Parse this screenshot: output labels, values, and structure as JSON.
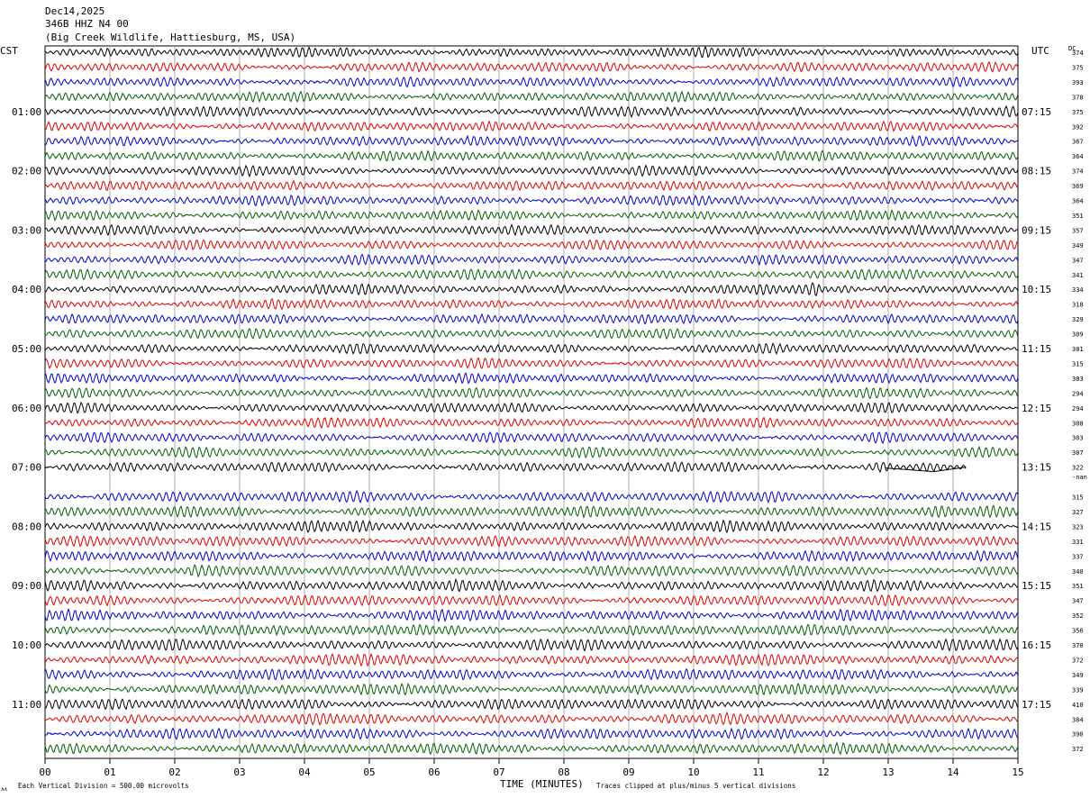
{
  "header": {
    "date": "Dec14,2025",
    "station": "346B HHZ N4 00",
    "location": "(Big Creek Wildlife, Hattiesburg, MS, USA)"
  },
  "labels": {
    "left_tz": "CST",
    "right_tz": "UTC",
    "dc_header": "DC",
    "xaxis": "TIME (MINUTES)",
    "scale_note": "Each Vertical Division =  500.00 microvolts",
    "clip_note": "Traces clipped at plus/minus 5 vertical divisions",
    "corner_mark": "∧∧",
    "gap_note": "-nan"
  },
  "colors": [
    "#000000",
    "#e00000",
    "#0000d0",
    "#006000"
  ],
  "chart_data": {
    "type": "line",
    "title": "",
    "xlabel": "TIME (MINUTES)",
    "x_ticks": [
      "00",
      "01",
      "02",
      "03",
      "04",
      "05",
      "06",
      "07",
      "08",
      "09",
      "10",
      "11",
      "12",
      "13",
      "14",
      "15"
    ],
    "xlim": [
      0,
      15
    ],
    "rows": 48,
    "missing_row": 29,
    "partial_row": {
      "row": 28,
      "end_minute": 14.2
    },
    "left_hour_labels": [
      {
        "row": 4,
        "text": "01:00"
      },
      {
        "row": 8,
        "text": "02:00"
      },
      {
        "row": 12,
        "text": "03:00"
      },
      {
        "row": 16,
        "text": "04:00"
      },
      {
        "row": 20,
        "text": "05:00"
      },
      {
        "row": 24,
        "text": "06:00"
      },
      {
        "row": 28,
        "text": "07:00"
      },
      {
        "row": 32,
        "text": "08:00"
      },
      {
        "row": 36,
        "text": "09:00"
      },
      {
        "row": 40,
        "text": "10:00"
      },
      {
        "row": 44,
        "text": "11:00"
      }
    ],
    "right_hour_labels": [
      {
        "row": 4,
        "text": "07:15"
      },
      {
        "row": 8,
        "text": "08:15"
      },
      {
        "row": 12,
        "text": "09:15"
      },
      {
        "row": 16,
        "text": "10:15"
      },
      {
        "row": 20,
        "text": "11:15"
      },
      {
        "row": 24,
        "text": "12:15"
      },
      {
        "row": 28,
        "text": "13:15"
      },
      {
        "row": 32,
        "text": "14:15"
      },
      {
        "row": 36,
        "text": "15:15"
      },
      {
        "row": 40,
        "text": "16:15"
      },
      {
        "row": 44,
        "text": "17:15"
      }
    ],
    "dc_values": [
      "374",
      "375",
      "393",
      "378",
      "375",
      "392",
      "367",
      "364",
      "374",
      "369",
      "364",
      "351",
      "357",
      "349",
      "347",
      "341",
      "334",
      "318",
      "329",
      "309",
      "301",
      "315",
      "303",
      "294",
      "294",
      "308",
      "303",
      "307",
      "322",
      "-nan",
      "315",
      "327",
      "323",
      "331",
      "337",
      "340",
      "351",
      "347",
      "352",
      "356",
      "370",
      "372",
      "349",
      "339",
      "410",
      "384",
      "390",
      "372"
    ],
    "events": [
      {
        "row": 0,
        "minute": 6.7,
        "amp": 1.6
      },
      {
        "row": 6,
        "minute": 6.5,
        "amp": 1.8
      },
      {
        "row": 16,
        "minute": 11.9,
        "amp": 2.0
      },
      {
        "row": 28,
        "minute": 12.9,
        "amp": 1.4
      },
      {
        "row": 31,
        "minute": 13.8,
        "amp": 1.3
      },
      {
        "row": 35,
        "minute": 2.3,
        "amp": 1.5
      },
      {
        "row": 26,
        "minute": 12.8,
        "amp": 1.3
      }
    ]
  }
}
